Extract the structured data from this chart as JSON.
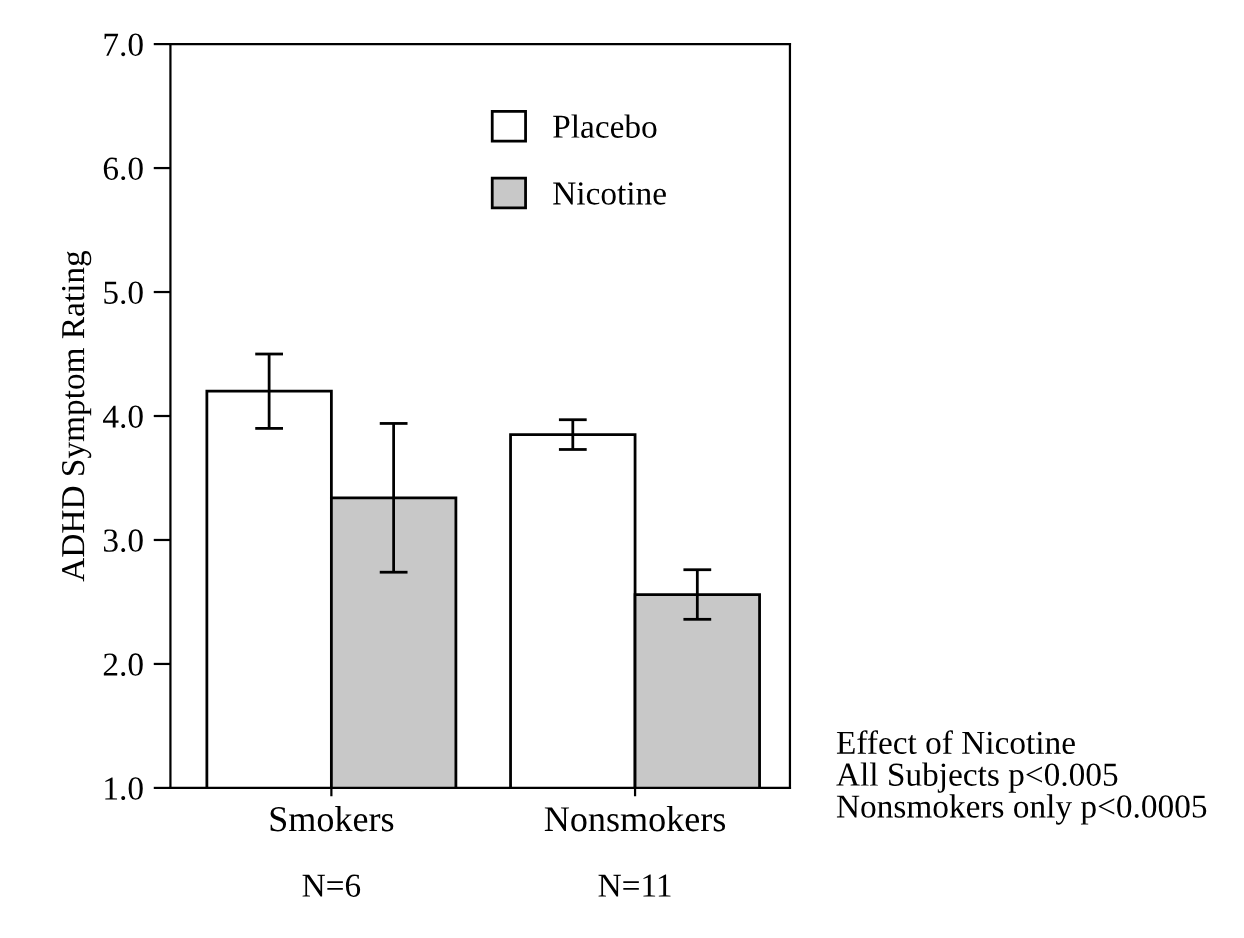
{
  "chart_data": {
    "type": "bar",
    "ylabel": "ADHD Symptom Rating",
    "categories": [
      "Smokers",
      "Nonsmokers"
    ],
    "series": [
      {
        "name": "Placebo",
        "color": "#ffffff",
        "values": [
          4.2,
          3.85
        ],
        "errors": [
          0.3,
          0.12
        ]
      },
      {
        "name": "Nicotine",
        "color": "#c8c8c8",
        "values": [
          3.34,
          2.56
        ],
        "errors": [
          0.6,
          0.2
        ]
      }
    ],
    "ylim": [
      1,
      7
    ],
    "yticks": [
      {
        "value": 1,
        "label": "1.0"
      },
      {
        "value": 2,
        "label": "2.0"
      },
      {
        "value": 3,
        "label": "3.0"
      },
      {
        "value": 4,
        "label": "4.0"
      },
      {
        "value": 5,
        "label": "5.0"
      },
      {
        "value": 6,
        "label": "6.0"
      },
      {
        "value": 7,
        "label": "7.0"
      }
    ],
    "legend": "top right",
    "grid": false,
    "annotations": [
      "N=6",
      "N=11",
      "Effect of Nicotine",
      "All Subjects p<0.005",
      "Nonsmokers only p<0.0005"
    ]
  }
}
